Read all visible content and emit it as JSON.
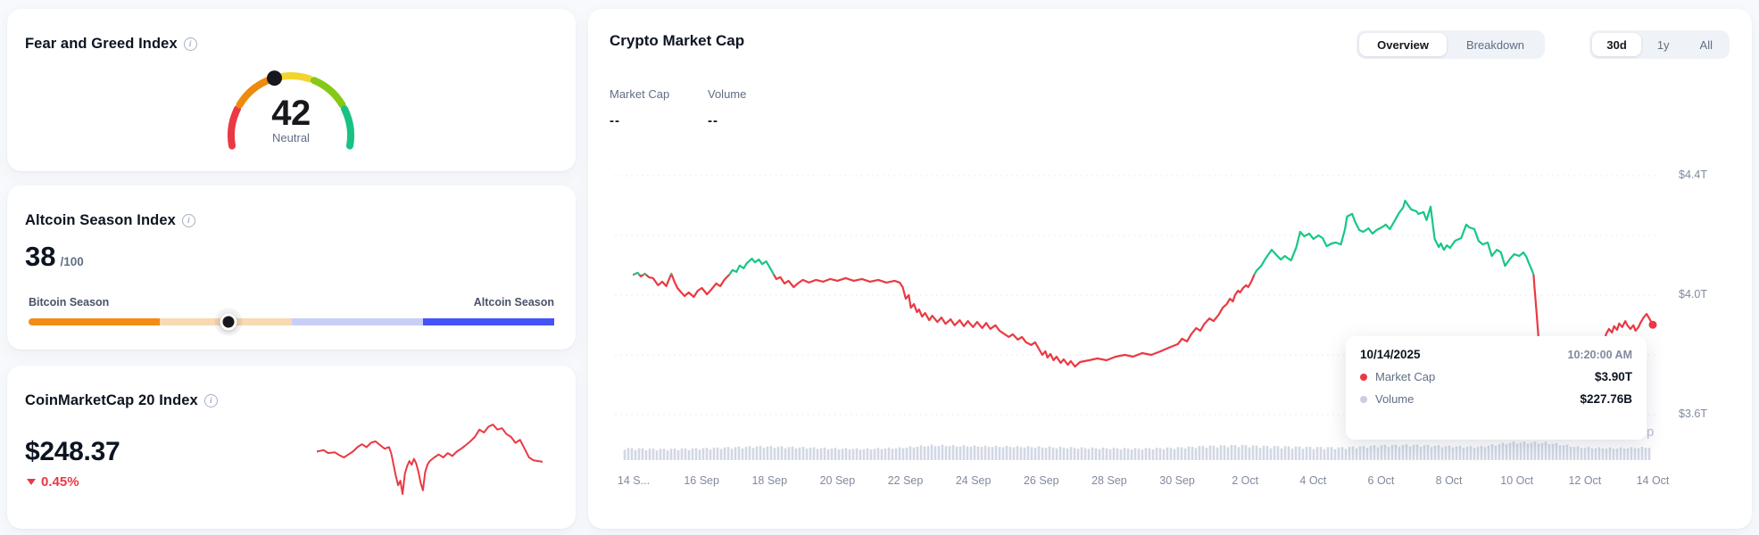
{
  "page": {
    "background": "#f7f9fc"
  },
  "fear_greed_card": {
    "title": "Fear and Greed Index",
    "info_icon": "i",
    "value": 42,
    "value_max": 100,
    "classification": "Neutral",
    "gauge_colors": [
      "#ea3943",
      "#ee8a0e",
      "#f3d42e",
      "#85c916",
      "#19c182"
    ],
    "indicator_color": "#17181b"
  },
  "altcoin_card": {
    "title": "Altcoin Season Index",
    "info_icon": "i",
    "value": 38,
    "suffix": "/100",
    "left_label": "Bitcoin Season",
    "right_label": "Altcoin Season",
    "track_colors": [
      "#f28c16",
      "#f8d9b2",
      "#c8cef7",
      "#4453f5"
    ],
    "indicator_color": "#17181b"
  },
  "cmc20_card": {
    "title": "CoinMarketCap 20 Index",
    "info_icon": "i",
    "price": "$248.37",
    "change": "0.45%",
    "change_direction": "down",
    "change_color": "#ea3943",
    "spark_color": "#ea3943",
    "spark_points": [
      [
        0.0,
        0.42
      ],
      [
        0.03,
        0.4
      ],
      [
        0.05,
        0.44
      ],
      [
        0.08,
        0.43
      ],
      [
        0.1,
        0.47
      ],
      [
        0.12,
        0.5
      ],
      [
        0.14,
        0.46
      ],
      [
        0.16,
        0.42
      ],
      [
        0.18,
        0.36
      ],
      [
        0.2,
        0.32
      ],
      [
        0.22,
        0.36
      ],
      [
        0.24,
        0.3
      ],
      [
        0.26,
        0.28
      ],
      [
        0.28,
        0.33
      ],
      [
        0.3,
        0.38
      ],
      [
        0.32,
        0.36
      ],
      [
        0.33,
        0.45
      ],
      [
        0.34,
        0.6
      ],
      [
        0.35,
        0.75
      ],
      [
        0.36,
        0.88
      ],
      [
        0.37,
        0.82
      ],
      [
        0.38,
        1.0
      ],
      [
        0.39,
        0.72
      ],
      [
        0.4,
        0.62
      ],
      [
        0.41,
        0.55
      ],
      [
        0.42,
        0.6
      ],
      [
        0.43,
        0.52
      ],
      [
        0.44,
        0.58
      ],
      [
        0.45,
        0.7
      ],
      [
        0.46,
        0.85
      ],
      [
        0.47,
        0.95
      ],
      [
        0.48,
        0.7
      ],
      [
        0.49,
        0.6
      ],
      [
        0.5,
        0.55
      ],
      [
        0.52,
        0.5
      ],
      [
        0.54,
        0.46
      ],
      [
        0.56,
        0.5
      ],
      [
        0.58,
        0.44
      ],
      [
        0.6,
        0.48
      ],
      [
        0.62,
        0.42
      ],
      [
        0.64,
        0.38
      ],
      [
        0.66,
        0.33
      ],
      [
        0.68,
        0.28
      ],
      [
        0.7,
        0.22
      ],
      [
        0.72,
        0.12
      ],
      [
        0.74,
        0.16
      ],
      [
        0.76,
        0.08
      ],
      [
        0.78,
        0.05
      ],
      [
        0.8,
        0.12
      ],
      [
        0.82,
        0.1
      ],
      [
        0.84,
        0.18
      ],
      [
        0.86,
        0.22
      ],
      [
        0.88,
        0.3
      ],
      [
        0.9,
        0.26
      ],
      [
        0.92,
        0.38
      ],
      [
        0.94,
        0.5
      ],
      [
        0.96,
        0.54
      ],
      [
        1.0,
        0.56
      ]
    ]
  },
  "market_cap_card": {
    "title": "Crypto Market Cap",
    "view_tabs": [
      {
        "label": "Overview",
        "active": true
      },
      {
        "label": "Breakdown",
        "active": false
      }
    ],
    "range_tabs": [
      {
        "label": "30d",
        "active": true
      },
      {
        "label": "1y",
        "active": false
      },
      {
        "label": "All",
        "active": false
      }
    ],
    "legend": [
      {
        "label": "Market Cap",
        "value": "--"
      },
      {
        "label": "Volume",
        "value": "--"
      }
    ],
    "watermark_fragment": "p",
    "tooltip": {
      "date": "10/14/2025",
      "time": "10:20:00 AM",
      "rows": [
        {
          "dot_color": "#ea3943",
          "label": "Market Cap",
          "value": "$3.90T"
        },
        {
          "dot_color": "#c9cfdd",
          "label": "Volume",
          "value": "$227.76B"
        }
      ]
    }
  },
  "chart_data": {
    "type": "line",
    "title": "Crypto Market Cap",
    "x_ticks": [
      "14 S...",
      "16 Sep",
      "18 Sep",
      "20 Sep",
      "22 Sep",
      "24 Sep",
      "26 Sep",
      "28 Sep",
      "30 Sep",
      "2 Oct",
      "4 Oct",
      "6 Oct",
      "8 Oct",
      "10 Oct",
      "12 Oct",
      "14 Oct"
    ],
    "y_ticks": [
      {
        "label": "$4.4T",
        "value": 4.4
      },
      {
        "label": "$4.0T",
        "value": 4.0
      },
      {
        "label": "$3.6T",
        "value": 3.6
      }
    ],
    "gridline_values": [
      4.4,
      4.2,
      4.0,
      3.8,
      3.6
    ],
    "y_range": [
      3.55,
      4.45
    ],
    "baseline_value": 4.069,
    "last_value_display": "$3.90T",
    "legend_position": "top-left",
    "colors": {
      "above_baseline": "#16c784",
      "below_baseline": "#ea3943",
      "volume_bar": "#d2d7e5"
    },
    "market_cap_T": [
      [
        0.0,
        4.069
      ],
      [
        0.004,
        4.075
      ],
      [
        0.007,
        4.063
      ],
      [
        0.011,
        4.072
      ],
      [
        0.015,
        4.06
      ],
      [
        0.019,
        4.057
      ],
      [
        0.024,
        4.033
      ],
      [
        0.028,
        4.045
      ],
      [
        0.032,
        4.03
      ],
      [
        0.037,
        4.072
      ],
      [
        0.04,
        4.045
      ],
      [
        0.043,
        4.024
      ],
      [
        0.046,
        4.012
      ],
      [
        0.05,
        3.997
      ],
      [
        0.054,
        4.009
      ],
      [
        0.059,
        3.994
      ],
      [
        0.063,
        4.015
      ],
      [
        0.067,
        4.024
      ],
      [
        0.072,
        4.003
      ],
      [
        0.076,
        4.018
      ],
      [
        0.081,
        4.039
      ],
      [
        0.085,
        4.03
      ],
      [
        0.089,
        4.051
      ],
      [
        0.094,
        4.069
      ],
      [
        0.097,
        4.084
      ],
      [
        0.101,
        4.078
      ],
      [
        0.104,
        4.099
      ],
      [
        0.108,
        4.09
      ],
      [
        0.111,
        4.107
      ],
      [
        0.116,
        4.122
      ],
      [
        0.119,
        4.11
      ],
      [
        0.123,
        4.119
      ],
      [
        0.126,
        4.104
      ],
      [
        0.13,
        4.113
      ],
      [
        0.133,
        4.096
      ],
      [
        0.137,
        4.072
      ],
      [
        0.14,
        4.054
      ],
      [
        0.144,
        4.06
      ],
      [
        0.148,
        4.039
      ],
      [
        0.152,
        4.048
      ],
      [
        0.157,
        4.027
      ],
      [
        0.161,
        4.039
      ],
      [
        0.166,
        4.051
      ],
      [
        0.172,
        4.042
      ],
      [
        0.179,
        4.051
      ],
      [
        0.186,
        4.045
      ],
      [
        0.193,
        4.054
      ],
      [
        0.2,
        4.048
      ],
      [
        0.208,
        4.057
      ],
      [
        0.216,
        4.048
      ],
      [
        0.224,
        4.054
      ],
      [
        0.232,
        4.045
      ],
      [
        0.24,
        4.051
      ],
      [
        0.248,
        4.042
      ],
      [
        0.256,
        4.048
      ],
      [
        0.261,
        4.042
      ],
      [
        0.264,
        4.027
      ],
      [
        0.267,
        3.988
      ],
      [
        0.27,
        4.0
      ],
      [
        0.272,
        3.958
      ],
      [
        0.275,
        3.97
      ],
      [
        0.278,
        3.943
      ],
      [
        0.28,
        3.952
      ],
      [
        0.283,
        3.928
      ],
      [
        0.286,
        3.94
      ],
      [
        0.29,
        3.916
      ],
      [
        0.293,
        3.931
      ],
      [
        0.298,
        3.91
      ],
      [
        0.302,
        3.925
      ],
      [
        0.306,
        3.904
      ],
      [
        0.311,
        3.919
      ],
      [
        0.315,
        3.899
      ],
      [
        0.32,
        3.916
      ],
      [
        0.324,
        3.896
      ],
      [
        0.328,
        3.913
      ],
      [
        0.333,
        3.893
      ],
      [
        0.337,
        3.91
      ],
      [
        0.342,
        3.89
      ],
      [
        0.346,
        3.907
      ],
      [
        0.35,
        3.887
      ],
      [
        0.355,
        3.899
      ],
      [
        0.359,
        3.881
      ],
      [
        0.363,
        3.872
      ],
      [
        0.368,
        3.86
      ],
      [
        0.372,
        3.869
      ],
      [
        0.377,
        3.851
      ],
      [
        0.381,
        3.86
      ],
      [
        0.385,
        3.842
      ],
      [
        0.39,
        3.833
      ],
      [
        0.394,
        3.842
      ],
      [
        0.398,
        3.818
      ],
      [
        0.401,
        3.8
      ],
      [
        0.404,
        3.812
      ],
      [
        0.406,
        3.791
      ],
      [
        0.409,
        3.803
      ],
      [
        0.412,
        3.782
      ],
      [
        0.415,
        3.794
      ],
      [
        0.419,
        3.773
      ],
      [
        0.422,
        3.785
      ],
      [
        0.426,
        3.767
      ],
      [
        0.429,
        3.779
      ],
      [
        0.433,
        3.761
      ],
      [
        0.438,
        3.776
      ],
      [
        0.447,
        3.782
      ],
      [
        0.455,
        3.788
      ],
      [
        0.464,
        3.782
      ],
      [
        0.473,
        3.794
      ],
      [
        0.482,
        3.8
      ],
      [
        0.49,
        3.794
      ],
      [
        0.499,
        3.806
      ],
      [
        0.508,
        3.8
      ],
      [
        0.517,
        3.812
      ],
      [
        0.525,
        3.824
      ],
      [
        0.534,
        3.836
      ],
      [
        0.538,
        3.854
      ],
      [
        0.543,
        3.845
      ],
      [
        0.547,
        3.869
      ],
      [
        0.552,
        3.89
      ],
      [
        0.556,
        3.881
      ],
      [
        0.56,
        3.904
      ],
      [
        0.565,
        3.922
      ],
      [
        0.569,
        3.913
      ],
      [
        0.574,
        3.934
      ],
      [
        0.578,
        3.958
      ],
      [
        0.582,
        3.97
      ],
      [
        0.585,
        3.988
      ],
      [
        0.588,
        3.979
      ],
      [
        0.59,
        4.0
      ],
      [
        0.593,
        4.015
      ],
      [
        0.595,
        4.009
      ],
      [
        0.598,
        4.024
      ],
      [
        0.601,
        4.033
      ],
      [
        0.603,
        4.027
      ],
      [
        0.606,
        4.045
      ],
      [
        0.609,
        4.069
      ],
      [
        0.611,
        4.081
      ],
      [
        0.616,
        4.099
      ],
      [
        0.62,
        4.122
      ],
      [
        0.626,
        4.152
      ],
      [
        0.63,
        4.137
      ],
      [
        0.635,
        4.119
      ],
      [
        0.639,
        4.131
      ],
      [
        0.645,
        4.116
      ],
      [
        0.65,
        4.158
      ],
      [
        0.654,
        4.212
      ],
      [
        0.658,
        4.197
      ],
      [
        0.663,
        4.206
      ],
      [
        0.667,
        4.188
      ],
      [
        0.672,
        4.2
      ],
      [
        0.676,
        4.191
      ],
      [
        0.68,
        4.164
      ],
      [
        0.685,
        4.173
      ],
      [
        0.689,
        4.176
      ],
      [
        0.694,
        4.17
      ],
      [
        0.698,
        4.221
      ],
      [
        0.7,
        4.263
      ],
      [
        0.705,
        4.272
      ],
      [
        0.708,
        4.245
      ],
      [
        0.712,
        4.218
      ],
      [
        0.716,
        4.212
      ],
      [
        0.721,
        4.224
      ],
      [
        0.725,
        4.206
      ],
      [
        0.729,
        4.218
      ],
      [
        0.734,
        4.227
      ],
      [
        0.738,
        4.236
      ],
      [
        0.742,
        4.221
      ],
      [
        0.747,
        4.251
      ],
      [
        0.751,
        4.275
      ],
      [
        0.755,
        4.293
      ],
      [
        0.757,
        4.316
      ],
      [
        0.76,
        4.301
      ],
      [
        0.763,
        4.287
      ],
      [
        0.768,
        4.281
      ],
      [
        0.77,
        4.272
      ],
      [
        0.775,
        4.278
      ],
      [
        0.778,
        4.251
      ],
      [
        0.782,
        4.296
      ],
      [
        0.786,
        4.188
      ],
      [
        0.79,
        4.161
      ],
      [
        0.792,
        4.173
      ],
      [
        0.795,
        4.152
      ],
      [
        0.798,
        4.167
      ],
      [
        0.801,
        4.158
      ],
      [
        0.806,
        4.182
      ],
      [
        0.812,
        4.191
      ],
      [
        0.817,
        4.236
      ],
      [
        0.82,
        4.227
      ],
      [
        0.825,
        4.221
      ],
      [
        0.829,
        4.182
      ],
      [
        0.833,
        4.17
      ],
      [
        0.838,
        4.176
      ],
      [
        0.842,
        4.131
      ],
      [
        0.847,
        4.152
      ],
      [
        0.851,
        4.143
      ],
      [
        0.855,
        4.098
      ],
      [
        0.86,
        4.122
      ],
      [
        0.864,
        4.137
      ],
      [
        0.869,
        4.131
      ],
      [
        0.873,
        4.143
      ],
      [
        0.876,
        4.128
      ],
      [
        0.878,
        4.11
      ],
      [
        0.881,
        4.087
      ],
      [
        0.883,
        4.069
      ],
      [
        0.884,
        4.024
      ],
      [
        0.886,
        3.94
      ],
      [
        0.888,
        3.85
      ],
      [
        0.89,
        3.76
      ],
      [
        0.891,
        3.69
      ],
      [
        0.894,
        3.63
      ],
      [
        0.897,
        3.615
      ],
      [
        0.9,
        3.633
      ],
      [
        0.904,
        3.612
      ],
      [
        0.907,
        3.627
      ],
      [
        0.911,
        3.606
      ],
      [
        0.914,
        3.624
      ],
      [
        0.918,
        3.615
      ],
      [
        0.921,
        3.639
      ],
      [
        0.925,
        3.63
      ],
      [
        0.928,
        3.651
      ],
      [
        0.932,
        3.672
      ],
      [
        0.935,
        3.69
      ],
      [
        0.939,
        3.713
      ],
      [
        0.942,
        3.737
      ],
      [
        0.946,
        3.761
      ],
      [
        0.949,
        3.788
      ],
      [
        0.952,
        3.812
      ],
      [
        0.954,
        3.869
      ],
      [
        0.957,
        3.887
      ],
      [
        0.96,
        3.875
      ],
      [
        0.962,
        3.896
      ],
      [
        0.965,
        3.884
      ],
      [
        0.967,
        3.905
      ],
      [
        0.97,
        3.893
      ],
      [
        0.973,
        3.913
      ],
      [
        0.975,
        3.899
      ],
      [
        0.978,
        3.887
      ],
      [
        0.981,
        3.899
      ],
      [
        0.983,
        3.881
      ],
      [
        0.986,
        3.893
      ],
      [
        0.988,
        3.908
      ],
      [
        0.991,
        3.925
      ],
      [
        0.994,
        3.937
      ],
      [
        0.996,
        3.925
      ],
      [
        0.998,
        3.913
      ],
      [
        1.0,
        3.901
      ]
    ],
    "volume_B_daily": [
      162,
      150,
      156,
      172,
      186,
      176,
      160,
      152,
      166,
      202,
      192,
      186,
      180,
      170,
      162,
      156,
      166,
      190,
      202,
      186,
      176,
      170,
      196,
      206,
      190,
      180,
      242,
      238,
      172,
      162,
      176
    ]
  }
}
